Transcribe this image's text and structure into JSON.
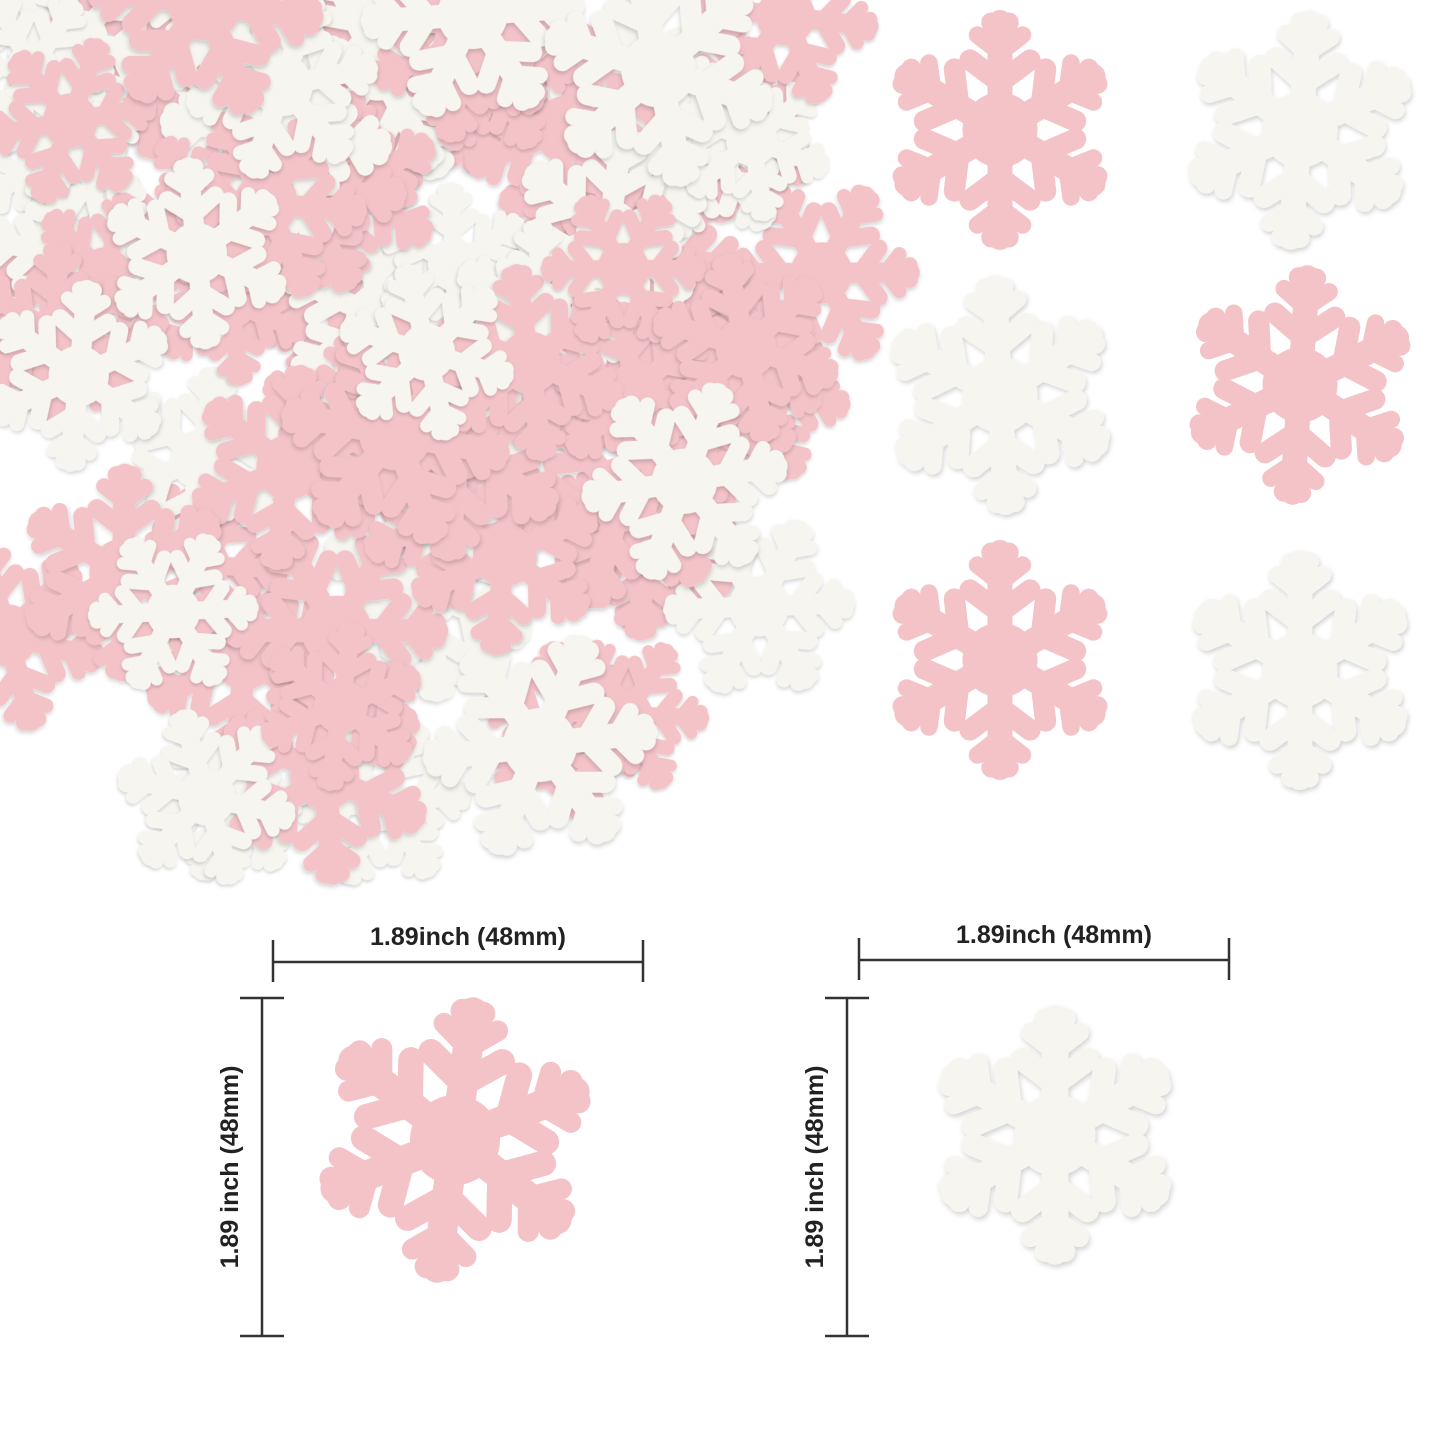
{
  "colors": {
    "pink": "#f3c3c8",
    "white": "#f6f5f0",
    "line": "#333333"
  },
  "gallery": {
    "items": [
      {
        "color": "pink"
      },
      {
        "color": "white"
      },
      {
        "color": "white"
      },
      {
        "color": "pink"
      },
      {
        "color": "pink"
      },
      {
        "color": "white"
      }
    ]
  },
  "dimensions": [
    {
      "color": "pink",
      "width_label": "1.89inch  (48mm)",
      "height_label": "1.89 inch  (48mm)"
    },
    {
      "color": "white",
      "width_label": "1.89inch  (48mm)",
      "height_label": "1.89 inch  (48mm)"
    }
  ]
}
